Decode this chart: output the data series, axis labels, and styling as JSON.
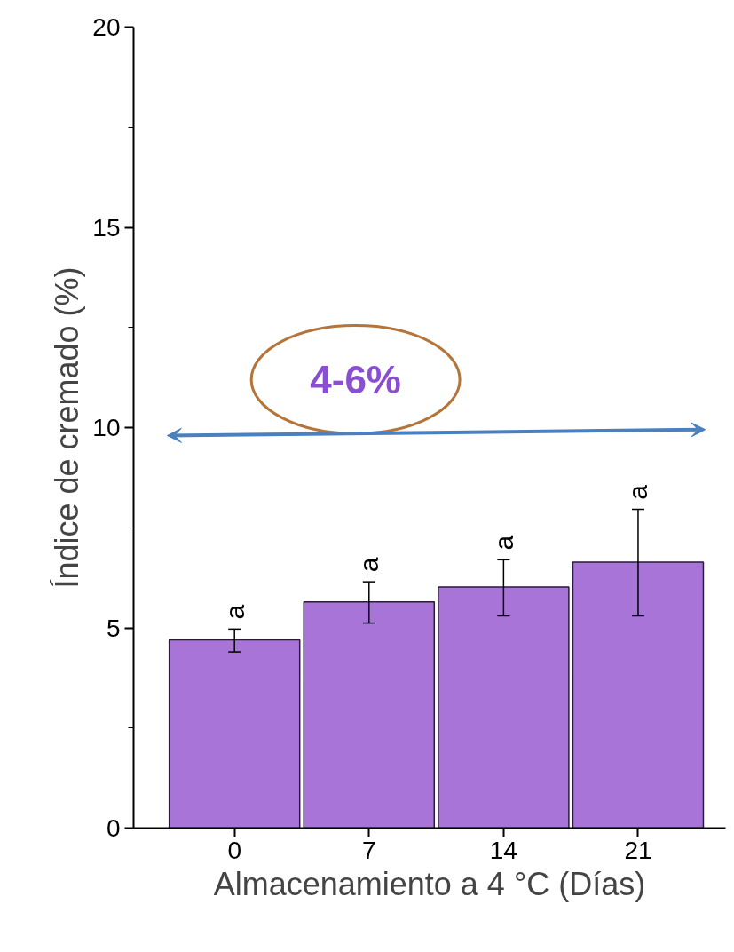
{
  "chart_data": {
    "type": "bar",
    "xlabel": "Almacenamiento a 4 °C (Días)",
    "ylabel": "Índice de cremado (%)",
    "categories": [
      "0",
      "7",
      "14",
      "21"
    ],
    "values": [
      4.7,
      5.65,
      6.02,
      6.64
    ],
    "errors": [
      [
        4.4,
        4.97
      ],
      [
        5.12,
        6.15
      ],
      [
        5.3,
        6.7
      ],
      [
        5.3,
        7.96
      ]
    ],
    "color": "#a974d8",
    "ylim": [
      0,
      20
    ],
    "yticks": [
      0,
      5,
      10,
      15,
      20
    ],
    "grid": false,
    "annotations": [
      {
        "text": "a",
        "x": "0",
        "y": 4.97
      },
      {
        "text": "a",
        "x": "7",
        "y": 6.15
      },
      {
        "text": "a",
        "x": "14",
        "y": 6.7
      },
      {
        "text": "a",
        "x": "21",
        "y": 7.96
      },
      "4-6%"
    ]
  }
}
